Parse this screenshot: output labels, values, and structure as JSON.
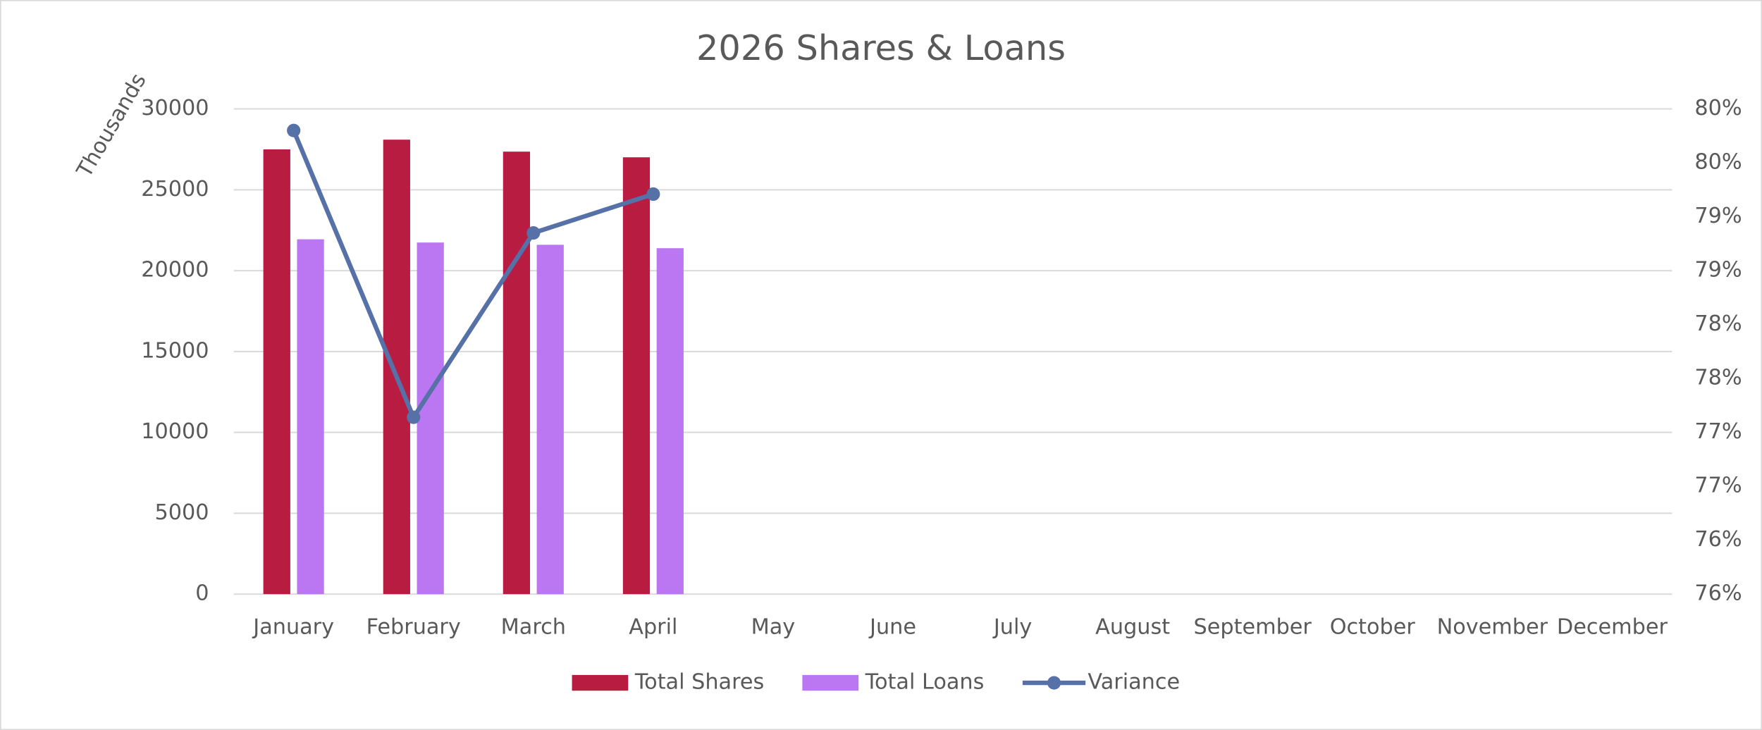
{
  "chart_data": {
    "type": "bar-line",
    "title": "2026 Shares & Loans",
    "y_label": "Thousands",
    "categories": [
      "January",
      "February",
      "March",
      "April",
      "May",
      "June",
      "July",
      "August",
      "September",
      "October",
      "November",
      "December"
    ],
    "series": [
      {
        "name": "Total Shares",
        "type": "bar",
        "color": "#b81c41",
        "values": [
          27500,
          28100,
          27360,
          27010,
          null,
          null,
          null,
          null,
          null,
          null,
          null,
          null
        ]
      },
      {
        "name": "Total Loans",
        "type": "bar",
        "color": "#bb77f2",
        "values": [
          21940,
          21740,
          21600,
          21390,
          null,
          null,
          null,
          null,
          null,
          null,
          null,
          null
        ]
      },
      {
        "name": "Variance",
        "type": "line",
        "axis": "y2",
        "color": "#5670a8",
        "values": [
          79.8,
          77.14,
          78.85,
          79.21,
          null,
          null,
          null,
          null,
          null,
          null,
          null,
          null
        ]
      }
    ],
    "ylim": [
      0,
      30000
    ],
    "yticks": [
      0,
      5000,
      10000,
      15000,
      20000,
      25000,
      30000
    ],
    "y2lim": [
      75.5,
      80
    ],
    "y2ticks": [
      {
        "value": 75.5,
        "label": "76%"
      },
      {
        "value": 76,
        "label": "76%"
      },
      {
        "value": 76.5,
        "label": "77%"
      },
      {
        "value": 77,
        "label": "77%"
      },
      {
        "value": 77.5,
        "label": "78%"
      },
      {
        "value": 78,
        "label": "78%"
      },
      {
        "value": 78.5,
        "label": "79%"
      },
      {
        "value": 79,
        "label": "79%"
      },
      {
        "value": 79.5,
        "label": "80%"
      },
      {
        "value": 80,
        "label": "80%"
      }
    ],
    "grid": true,
    "legend": "bottom"
  }
}
